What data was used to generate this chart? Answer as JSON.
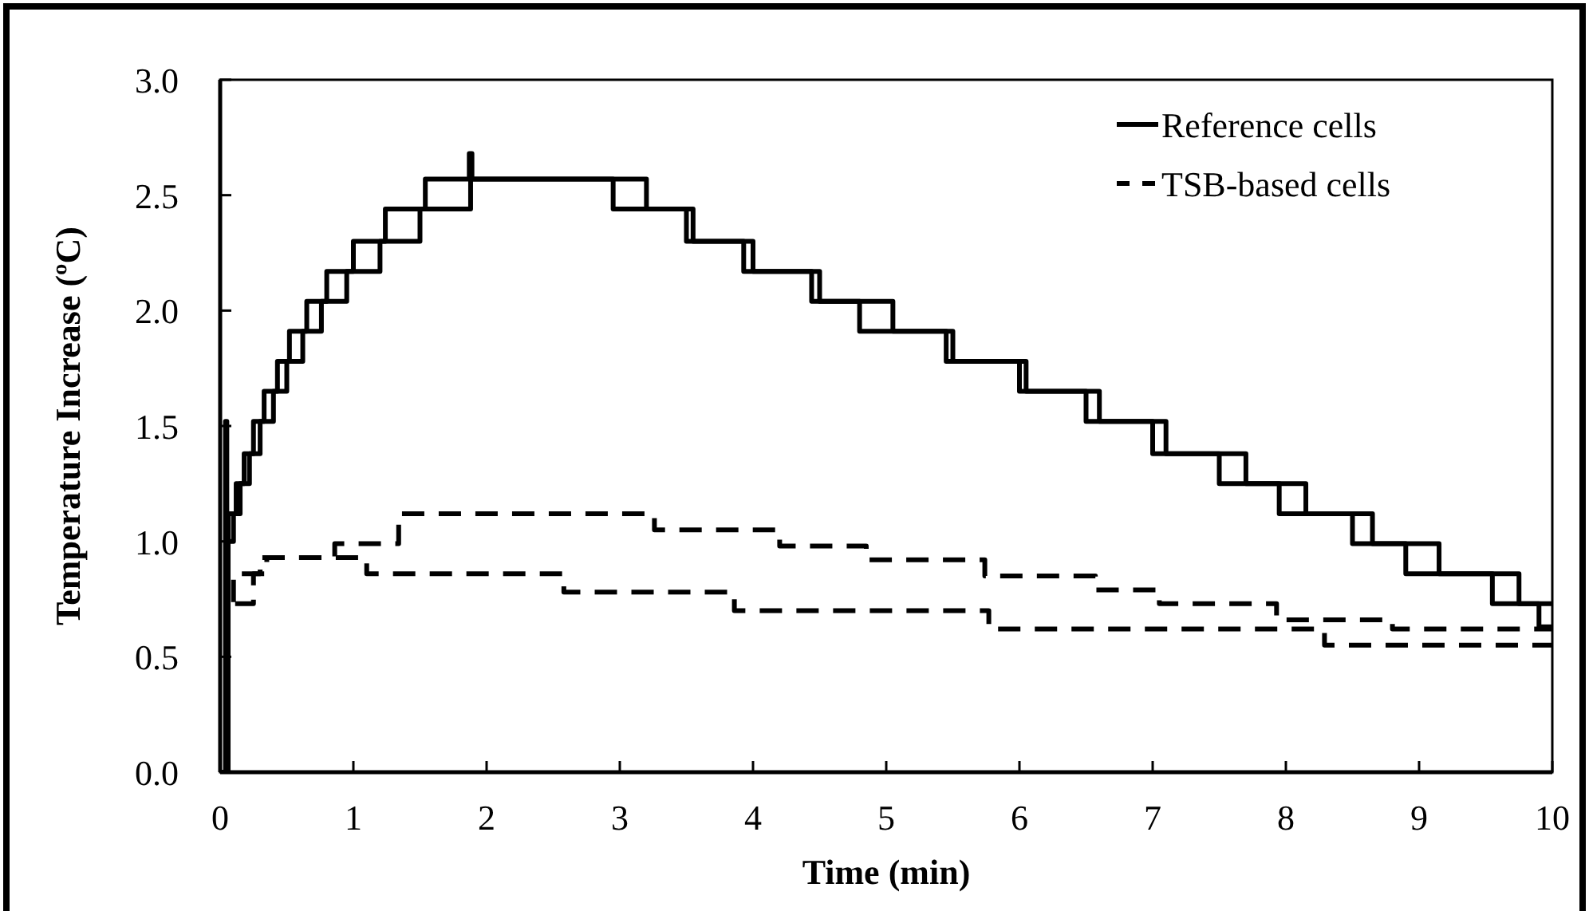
{
  "chart_data": {
    "type": "step",
    "xlabel": "Time (min)",
    "ylabel": "Temperature Increase (ºC)",
    "xlim": [
      0,
      10
    ],
    "xticks": [
      0,
      1,
      2,
      3,
      4,
      5,
      6,
      7,
      8,
      9,
      10
    ],
    "ylim": [
      0,
      3
    ],
    "yticks": [
      {
        "value": 0,
        "label": "0.0"
      },
      {
        "value": 0.5,
        "label": "0.5"
      },
      {
        "value": 1,
        "label": "1.0"
      },
      {
        "value": 1.5,
        "label": "1.5"
      },
      {
        "value": 2,
        "label": "2.0"
      },
      {
        "value": 2.5,
        "label": "2.5"
      },
      {
        "value": 3,
        "label": "3.0"
      }
    ],
    "grid": false,
    "legend": "top right",
    "marker": "none",
    "series": [
      {
        "name": "Reference cells",
        "color": "#000000",
        "line_style": "solid",
        "x": [
          0,
          0.04,
          0.05,
          0.1,
          0.15,
          0.22,
          0.3,
          0.4,
          0.5,
          0.62,
          0.76,
          0.95,
          1.2,
          1.5,
          1.88,
          1.9,
          2.95,
          3.5,
          3.93,
          4.44,
          4.8,
          5.45,
          6.0,
          6.5,
          7.0,
          7.5,
          7.95,
          8.5,
          8.9,
          9.55,
          9.9,
          10
        ],
        "values": [
          0,
          1.52,
          1.0,
          1.12,
          1.25,
          1.38,
          1.52,
          1.65,
          1.78,
          1.91,
          2.04,
          2.17,
          2.3,
          2.44,
          2.57,
          2.57,
          2.44,
          2.3,
          2.17,
          2.04,
          1.91,
          1.78,
          1.65,
          1.52,
          1.38,
          1.25,
          1.12,
          0.99,
          0.86,
          0.73,
          0.63,
          0.63
        ]
      },
      {
        "color": "#000000",
        "line_style": "solid",
        "x": [
          0,
          0.06,
          0.12,
          0.18,
          0.25,
          0.33,
          0.43,
          0.52,
          0.65,
          0.8,
          1.0,
          1.24,
          1.54,
          1.86,
          1.87,
          1.89,
          3.2,
          3.55,
          4.0,
          4.5,
          5.05,
          5.5,
          6.05,
          6.6,
          7.1,
          7.7,
          8.15,
          8.65,
          9.15,
          9.75,
          10
        ],
        "values": [
          0,
          1.12,
          1.25,
          1.38,
          1.52,
          1.65,
          1.78,
          1.91,
          2.04,
          2.17,
          2.3,
          2.44,
          2.57,
          2.57,
          2.68,
          2.57,
          2.44,
          2.3,
          2.17,
          2.04,
          1.91,
          1.78,
          1.65,
          1.52,
          1.38,
          1.25,
          1.12,
          0.99,
          0.86,
          0.73,
          0.73
        ]
      },
      {
        "name": "TSB-based cells",
        "color": "#000000",
        "line_style": "dashed",
        "x": [
          0,
          0.05,
          0.25,
          0.35,
          0.86,
          1.34,
          3.26,
          4.2,
          4.85,
          5.74,
          6.57,
          7.05,
          7.93,
          8.8,
          10
        ],
        "values": [
          0,
          0.73,
          0.86,
          0.93,
          0.99,
          1.12,
          1.05,
          0.98,
          0.92,
          0.85,
          0.79,
          0.73,
          0.66,
          0.62,
          0.62
        ]
      },
      {
        "color": "#000000",
        "line_style": "dashed",
        "x": [
          0,
          0.05,
          0.1,
          0.3,
          1.1,
          2.58,
          3.86,
          5.77,
          8.29,
          10
        ],
        "values": [
          0,
          0.73,
          0.86,
          0.93,
          0.86,
          0.78,
          0.7,
          0.62,
          0.55,
          0.55
        ]
      }
    ]
  }
}
